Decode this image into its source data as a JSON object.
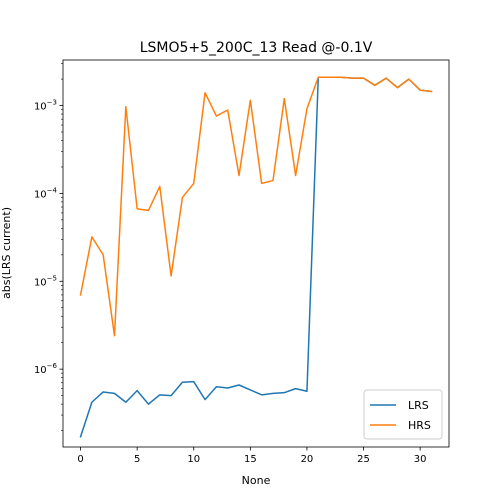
{
  "chart_data": {
    "type": "line",
    "title": "LSMO5+5_200C_13 Read @-0.1V",
    "xlabel": "None",
    "ylabel": "abs(LRS current)",
    "y_scale": "log",
    "xlim": [
      -1.55,
      32.55
    ],
    "ylim": [
      1.3e-07,
      0.0033
    ],
    "x_ticks": [
      0,
      5,
      10,
      15,
      20,
      25,
      30
    ],
    "y_ticks": [
      {
        "value": 1e-06,
        "base": "10",
        "exp": "−6"
      },
      {
        "value": 1e-05,
        "base": "10",
        "exp": "−5"
      },
      {
        "value": 0.0001,
        "base": "10",
        "exp": "−4"
      },
      {
        "value": 0.001,
        "base": "10",
        "exp": "−3"
      }
    ],
    "legend_position": "lower-right",
    "series": [
      {
        "name": "LRS",
        "color": "#1f77b4",
        "x": [
          0,
          1,
          2,
          3,
          4,
          5,
          6,
          7,
          8,
          9,
          10,
          11,
          12,
          13,
          14,
          15,
          16,
          17,
          18,
          19,
          20,
          21,
          22,
          23,
          24,
          25,
          26,
          27,
          28,
          29,
          30,
          31
        ],
        "values": [
          1.7e-07,
          4.2e-07,
          5.5e-07,
          5.3e-07,
          4.2e-07,
          5.7e-07,
          4e-07,
          5.1e-07,
          5e-07,
          7.1e-07,
          7.2e-07,
          4.5e-07,
          6.3e-07,
          6.1e-07,
          6.6e-07,
          5.8e-07,
          5.1e-07,
          5.3e-07,
          5.4e-07,
          6e-07,
          5.6e-07,
          0.0021,
          0.0021,
          0.0021,
          0.00205,
          0.00205,
          0.0017,
          0.00205,
          0.0016,
          0.002,
          0.0015,
          0.00145
        ]
      },
      {
        "name": "HRS",
        "color": "#ff7f0e",
        "x": [
          0,
          1,
          2,
          3,
          4,
          5,
          6,
          7,
          8,
          9,
          10,
          11,
          12,
          13,
          14,
          15,
          16,
          17,
          18,
          19,
          20,
          21,
          22,
          23,
          24,
          25,
          26,
          27,
          28,
          29,
          30,
          31
        ],
        "values": [
          7e-06,
          3.2e-05,
          2e-05,
          2.4e-06,
          0.00097,
          6.7e-05,
          6.4e-05,
          0.00012,
          1.15e-05,
          9e-05,
          0.00013,
          0.0014,
          0.00076,
          0.00089,
          0.00016,
          0.00115,
          0.00013,
          0.00014,
          0.0012,
          0.00016,
          0.00092,
          0.0021,
          0.0021,
          0.0021,
          0.00205,
          0.00205,
          0.0017,
          0.00205,
          0.0016,
          0.002,
          0.0015,
          0.00145
        ]
      }
    ]
  }
}
